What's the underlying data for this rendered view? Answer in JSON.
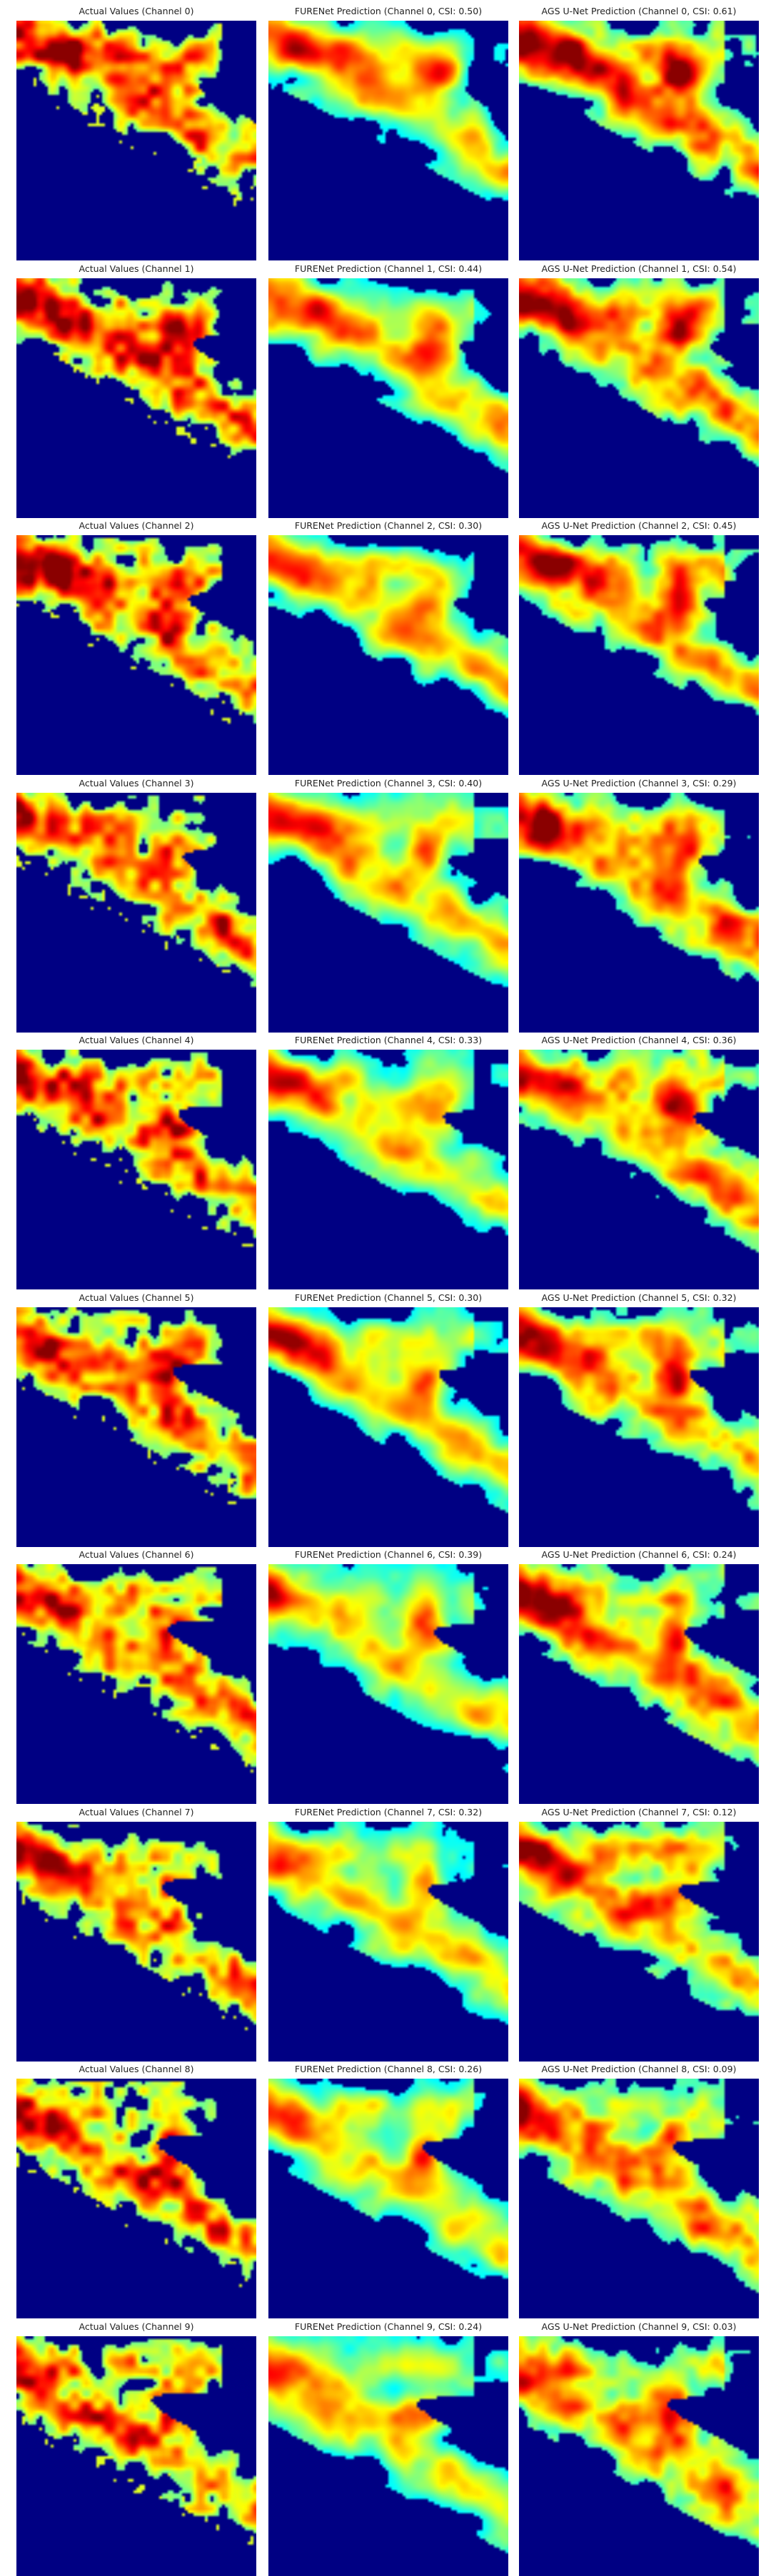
{
  "figure": {
    "colormap": "jet",
    "background": "#ffffff",
    "columns": [
      "Actual Values",
      "FURENet Prediction",
      "AGS U-Net Prediction"
    ]
  },
  "panels": [
    [
      {
        "title": "Actual Values (Channel 0)"
      },
      {
        "title": "FURENet Prediction (Channel 0, CSI: 0.50)"
      },
      {
        "title": "AGS U-Net Prediction (Channel 0, CSI: 0.61)"
      }
    ],
    [
      {
        "title": "Actual Values (Channel 1)"
      },
      {
        "title": "FURENet Prediction (Channel 1, CSI: 0.44)"
      },
      {
        "title": "AGS U-Net Prediction (Channel 1, CSI: 0.54)"
      }
    ],
    [
      {
        "title": "Actual Values (Channel 2)"
      },
      {
        "title": "FURENet Prediction (Channel 2, CSI: 0.30)"
      },
      {
        "title": "AGS U-Net Prediction (Channel 2, CSI: 0.45)"
      }
    ],
    [
      {
        "title": "Actual Values (Channel 3)"
      },
      {
        "title": "FURENet Prediction (Channel 3, CSI: 0.40)"
      },
      {
        "title": "AGS U-Net Prediction (Channel 3, CSI: 0.29)"
      }
    ],
    [
      {
        "title": "Actual Values (Channel 4)"
      },
      {
        "title": "FURENet Prediction (Channel 4, CSI: 0.33)"
      },
      {
        "title": "AGS U-Net Prediction (Channel 4, CSI: 0.36)"
      }
    ],
    [
      {
        "title": "Actual Values (Channel 5)"
      },
      {
        "title": "FURENet Prediction (Channel 5, CSI: 0.30)"
      },
      {
        "title": "AGS U-Net Prediction (Channel 5, CSI: 0.32)"
      }
    ],
    [
      {
        "title": "Actual Values (Channel 6)"
      },
      {
        "title": "FURENet Prediction (Channel 6, CSI: 0.39)"
      },
      {
        "title": "AGS U-Net Prediction (Channel 6, CSI: 0.24)"
      }
    ],
    [
      {
        "title": "Actual Values (Channel 7)"
      },
      {
        "title": "FURENet Prediction (Channel 7, CSI: 0.32)"
      },
      {
        "title": "AGS U-Net Prediction (Channel 7, CSI: 0.12)"
      }
    ],
    [
      {
        "title": "Actual Values (Channel 8)"
      },
      {
        "title": "FURENet Prediction (Channel 8, CSI: 0.26)"
      },
      {
        "title": "AGS U-Net Prediction (Channel 8, CSI: 0.09)"
      }
    ],
    [
      {
        "title": "Actual Values (Channel 9)"
      },
      {
        "title": "FURENet Prediction (Channel 9, CSI: 0.24)"
      },
      {
        "title": "AGS U-Net Prediction (Channel 9, CSI: 0.03)"
      }
    ]
  ]
}
